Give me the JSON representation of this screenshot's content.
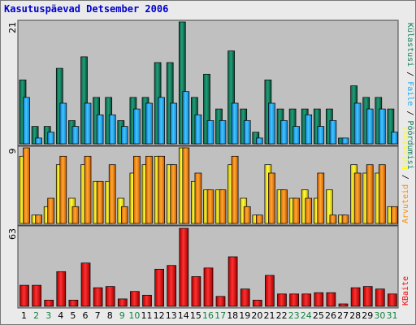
{
  "window": {
    "title": "Kasutuspäevad Detsember 2006"
  },
  "colors": {
    "background": "#eaeaea",
    "panel": "#c0c0c0",
    "visits": "#137f5f",
    "files": "#20a8f4",
    "sites": "#ffff00",
    "kbytes": "#ff0000",
    "weekday_label": "#000000",
    "weekend_label": "#138040",
    "title": "#0000cc"
  },
  "chart_data": [
    {
      "type": "bar",
      "panel": "top",
      "ymax_label": "21",
      "ylim": [
        0,
        21
      ],
      "legend": [
        {
          "label": "Külastusi",
          "color": "#137f5f"
        },
        {
          "label": "Faile",
          "color": "#20a8f4"
        },
        {
          "label": "Pöördumisi",
          "color": "#137f5f"
        }
      ],
      "separator": " / ",
      "categories": [
        "1",
        "2",
        "3",
        "4",
        "5",
        "6",
        "7",
        "8",
        "9",
        "10",
        "11",
        "12",
        "13",
        "14",
        "15",
        "16",
        "17",
        "18",
        "19",
        "20",
        "21",
        "22",
        "23",
        "24",
        "25",
        "26",
        "27",
        "28",
        "29",
        "30",
        "31"
      ],
      "series": [
        {
          "name": "Pöördumisi",
          "color": "#137f5f",
          "values": [
            11,
            3,
            3,
            13,
            4,
            15,
            8,
            8,
            4,
            8,
            8,
            14,
            14,
            21,
            8,
            12,
            6,
            16,
            6,
            2,
            11,
            6,
            6,
            6,
            6,
            6,
            1,
            10,
            8,
            8,
            6
          ]
        },
        {
          "name": "Faile",
          "color": "#20a8f4",
          "values": [
            8,
            1,
            2,
            7,
            3,
            7,
            5,
            5,
            3,
            6,
            7,
            8,
            7,
            9,
            5,
            4,
            4,
            7,
            4,
            1,
            7,
            4,
            3,
            5,
            3,
            4,
            1,
            7,
            6,
            6,
            2
          ]
        }
      ]
    },
    {
      "type": "bar",
      "panel": "middle",
      "ymax_label": "9",
      "ylim": [
        0,
        9
      ],
      "legend": [
        {
          "label": "Arvuteid",
          "color": "#ff8c00"
        },
        {
          "label": "Külastusi",
          "color": "#ffff00"
        }
      ],
      "separator": " / ",
      "categories": [
        "1",
        "2",
        "3",
        "4",
        "5",
        "6",
        "7",
        "8",
        "9",
        "10",
        "11",
        "12",
        "13",
        "14",
        "15",
        "16",
        "17",
        "18",
        "19",
        "20",
        "21",
        "22",
        "23",
        "24",
        "25",
        "26",
        "27",
        "28",
        "29",
        "30",
        "31"
      ],
      "series": [
        {
          "name": "Külastusi",
          "color": "#ffff00",
          "values": [
            8,
            1,
            2,
            7,
            3,
            7,
            5,
            5,
            3,
            6,
            7,
            8,
            7,
            9,
            5,
            4,
            4,
            7,
            3,
            1,
            7,
            4,
            3,
            4,
            3,
            4,
            1,
            7,
            6,
            6,
            2
          ]
        },
        {
          "name": "Arvuteid",
          "color": "#ff8c00",
          "values": [
            9,
            1,
            3,
            8,
            2,
            8,
            5,
            7,
            2,
            8,
            8,
            8,
            7,
            9,
            6,
            4,
            4,
            8,
            2,
            1,
            6,
            4,
            3,
            3,
            6,
            1,
            1,
            6,
            7,
            7,
            2
          ]
        }
      ]
    },
    {
      "type": "bar",
      "panel": "bottom",
      "ymax_label": "63",
      "ylim": [
        0,
        63
      ],
      "legend": [
        {
          "label": "KBaite",
          "color": "#ff0000"
        }
      ],
      "categories": [
        "1",
        "2",
        "3",
        "4",
        "5",
        "6",
        "7",
        "8",
        "9",
        "10",
        "11",
        "12",
        "13",
        "14",
        "15",
        "16",
        "17",
        "18",
        "19",
        "20",
        "21",
        "22",
        "23",
        "24",
        "25",
        "26",
        "27",
        "28",
        "29",
        "30",
        "31"
      ],
      "series": [
        {
          "name": "KBaite",
          "color": "#ff0000",
          "values": [
            17,
            17,
            5,
            28,
            5,
            35,
            15,
            16,
            6,
            12,
            9,
            30,
            33,
            63,
            24,
            31,
            8,
            40,
            14,
            5,
            25,
            10,
            10,
            10,
            11,
            11,
            2,
            15,
            16,
            14,
            10
          ]
        }
      ],
      "weekend_days": [
        "2",
        "3",
        "9",
        "10",
        "16",
        "17",
        "23",
        "24",
        "30",
        "31"
      ]
    }
  ]
}
